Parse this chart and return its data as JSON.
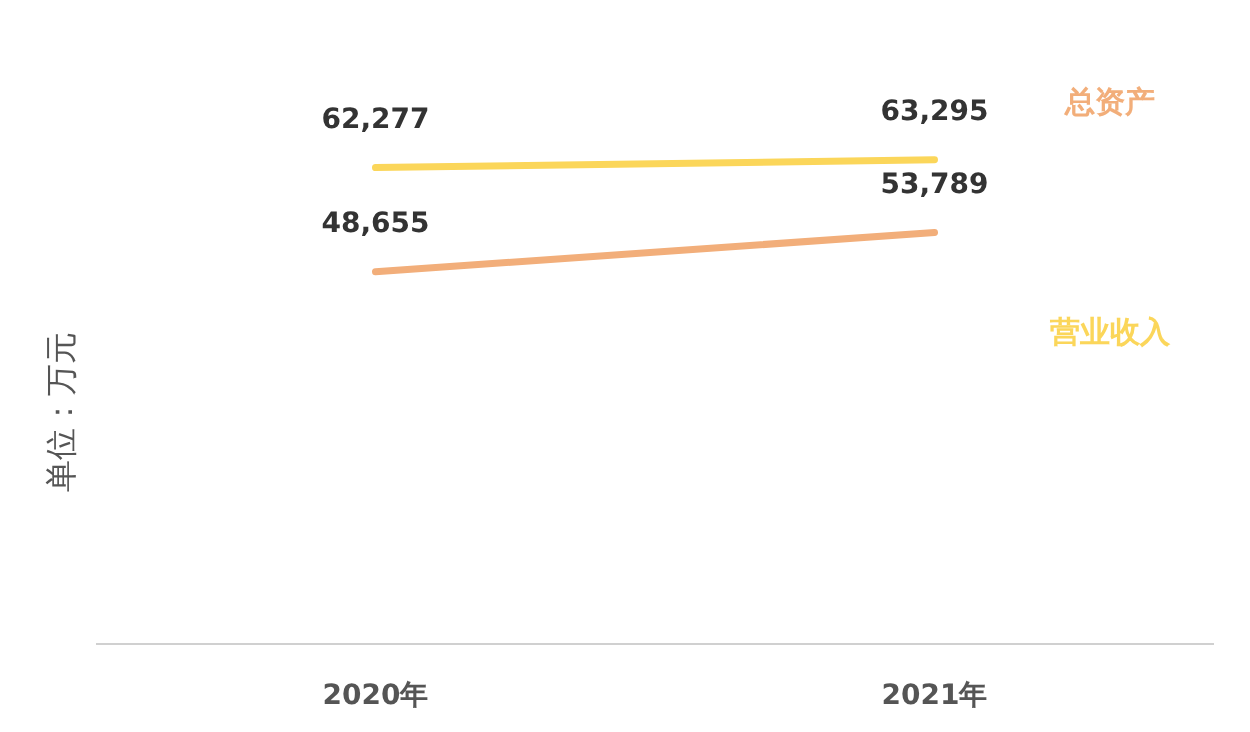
{
  "chart_data": {
    "type": "line",
    "ylabel": "单位：万元",
    "categories": [
      "2020年",
      "2021年"
    ],
    "legend": "right",
    "marker": "none",
    "line_style": "solid",
    "tick_labels": "x",
    "series": [
      {
        "name": "营业收入",
        "color": "#fbd65a",
        "values": [
          62277,
          63295
        ],
        "value_labels": [
          "62,277",
          "63,295"
        ]
      },
      {
        "name": "总资产",
        "color": "#f2ae7a",
        "values": [
          48655,
          53789
        ],
        "value_labels": [
          "48,655",
          "53,789"
        ]
      }
    ]
  }
}
